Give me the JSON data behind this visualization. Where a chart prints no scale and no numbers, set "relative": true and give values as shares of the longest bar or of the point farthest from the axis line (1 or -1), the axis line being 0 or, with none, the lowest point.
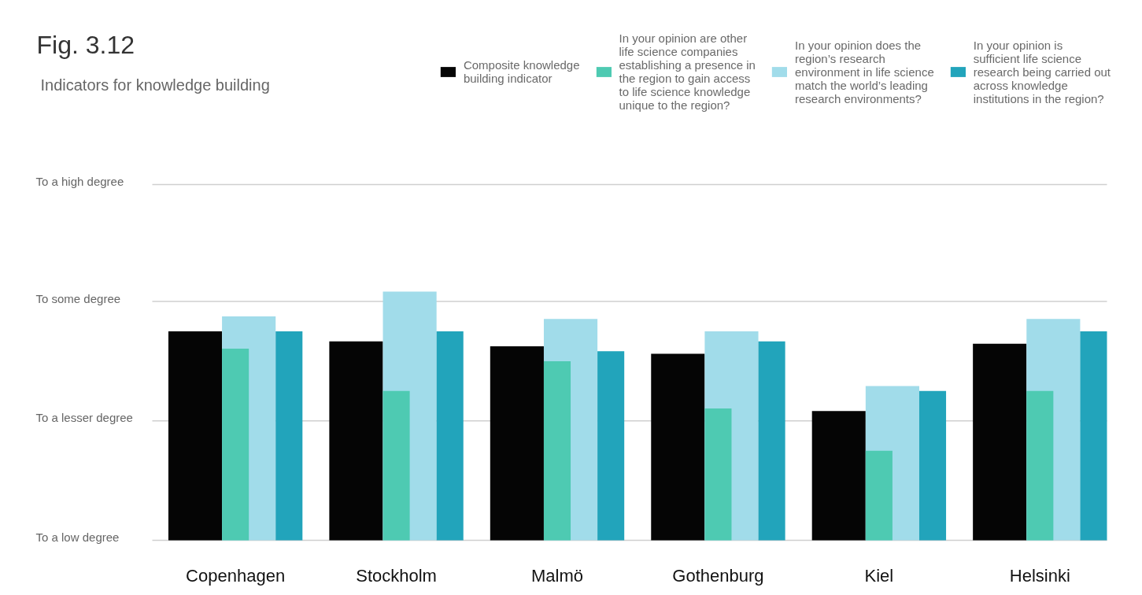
{
  "chart_data": {
    "type": "bar",
    "title": "Fig. 3.12",
    "subtitle": "Indicators for knowledge building",
    "relative": true,
    "categories": [
      "Copenhagen",
      "Stockholm",
      "Malmö",
      "Gothenburg",
      "Kiel",
      "Helsinki"
    ],
    "series": [
      {
        "name": "Composite knowledge building indicator",
        "color": "#050505",
        "values": [
          0.84,
          0.8,
          0.78,
          0.75,
          0.52,
          0.79
        ]
      },
      {
        "name": "In your opinion are other life science companies establishing a presence in the region to gain access to life science knowledge unique to the region?",
        "color": "#4ecab2",
        "values": [
          0.77,
          0.6,
          0.72,
          0.53,
          0.36,
          0.6
        ]
      },
      {
        "name": "In your opinion does the region’s research environment in life science match the world’s leading research environments?",
        "color": "#a1dcea",
        "values": [
          0.9,
          1,
          0.89,
          0.84,
          0.62,
          0.89
        ]
      },
      {
        "name": "In your opinion is sufficient life science research being carried out across knowledge institutions in the region?",
        "color": "#22a4bb",
        "values": [
          0.84,
          0.84,
          0.76,
          0.8,
          0.6,
          0.84
        ]
      }
    ],
    "ref_lines": [
      {
        "axis": "y",
        "value": 0,
        "label": "To a low degree",
        "color": "#cfcfcf"
      },
      {
        "axis": "y",
        "value": 0.48,
        "label": "To a lesser degree",
        "color": "#cfcfcf"
      },
      {
        "axis": "y",
        "value": 0.96,
        "label": "To some degree",
        "color": "#cfcfcf"
      },
      {
        "axis": "y",
        "value": 1.43,
        "label": "To a high degree",
        "color": "#cfcfcf"
      }
    ],
    "legend": "top right"
  }
}
